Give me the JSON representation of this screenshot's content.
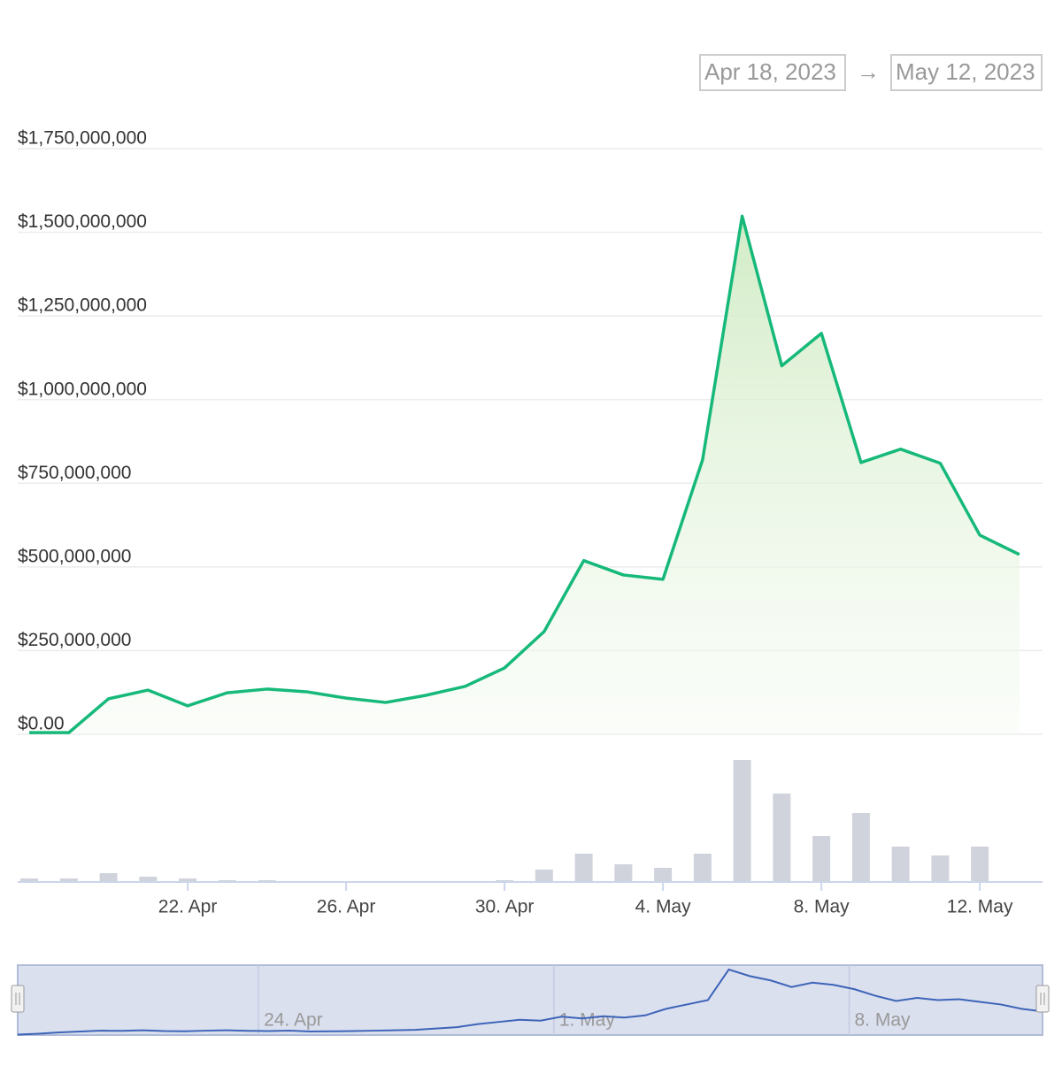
{
  "range_selector": {
    "from": "Apr 18, 2023",
    "separator": "→",
    "to": "May 12, 2023"
  },
  "chart_data": {
    "type": "line",
    "x": [
      "2023-04-18",
      "2023-04-19",
      "2023-04-20",
      "2023-04-21",
      "2023-04-22",
      "2023-04-23",
      "2023-04-24",
      "2023-04-25",
      "2023-04-26",
      "2023-04-27",
      "2023-04-28",
      "2023-04-29",
      "2023-04-30",
      "2023-05-01",
      "2023-05-02",
      "2023-05-03",
      "2023-05-04",
      "2023-05-05",
      "2023-05-06",
      "2023-05-07",
      "2023-05-08",
      "2023-05-09",
      "2023-05-10",
      "2023-05-11",
      "2023-05-12",
      "2023-05-13"
    ],
    "xlim": [
      "2023-04-17T17:00Z",
      "2023-05-13T14:00Z"
    ],
    "xticks": [
      {
        "value": "2023-04-22",
        "label": "22. Apr"
      },
      {
        "value": "2023-04-26",
        "label": "26. Apr"
      },
      {
        "value": "2023-04-30",
        "label": "30. Apr"
      },
      {
        "value": "2023-05-04",
        "label": "4. May"
      },
      {
        "value": "2023-05-08",
        "label": "8. May"
      },
      {
        "value": "2023-05-12",
        "label": "12. May"
      }
    ],
    "series": [
      {
        "type": "area",
        "color": "#16b97a",
        "values": [
          5000000,
          5000000,
          106000000,
          132000000,
          85000000,
          124000000,
          135000000,
          127000000,
          108000000,
          95000000,
          116000000,
          143000000,
          198000000,
          307000000,
          519000000,
          476000000,
          463000000,
          820000000,
          1548000000,
          1101000000,
          1198000000,
          812000000,
          852000000,
          810000000,
          595000000,
          537000000
        ]
      },
      {
        "type": "bar",
        "axis": "y2",
        "color": "#d0d3dc",
        "values": [
          4,
          4,
          10,
          6,
          4,
          2,
          2,
          0,
          0,
          0,
          0,
          0,
          2,
          14,
          32,
          20,
          16,
          32,
          138,
          100,
          52,
          78,
          40,
          30,
          40,
          null
        ]
      }
    ],
    "ylim": [
      0,
      1750000000
    ],
    "yticks": [
      {
        "value": 0,
        "label": "$0.00"
      },
      {
        "value": 250000000,
        "label": "$250,000,000"
      },
      {
        "value": 500000000,
        "label": "$500,000,000"
      },
      {
        "value": 750000000,
        "label": "$750,000,000"
      },
      {
        "value": 1000000000,
        "label": "$1,000,000,000"
      },
      {
        "value": 1250000000,
        "label": "$1,250,000,000"
      },
      {
        "value": 1500000000,
        "label": "$1,500,000,000"
      },
      {
        "value": 1750000000,
        "label": "$1,750,000,000"
      }
    ],
    "y2lim": [
      0,
      150
    ],
    "grid": true,
    "navigator": {
      "color": "#3d64b8",
      "xlim": [
        "2023-04-18T07:00Z",
        "2023-05-12T14:00Z"
      ],
      "xticks": [
        {
          "value": "2023-04-24",
          "label": "24. Apr"
        },
        {
          "value": "2023-05-01",
          "label": "1. May"
        },
        {
          "value": "2023-05-08",
          "label": "8. May"
        }
      ],
      "ylim": [
        0,
        1600000000
      ],
      "values": [
        10000000,
        30000000,
        60000000,
        80000000,
        100000000,
        95000000,
        110000000,
        90000000,
        85000000,
        100000000,
        110000000,
        95000000,
        90000000,
        100000000,
        80000000,
        85000000,
        90000000,
        100000000,
        110000000,
        120000000,
        150000000,
        180000000,
        250000000,
        300000000,
        350000000,
        330000000,
        420000000,
        380000000,
        430000000,
        400000000,
        450000000,
        600000000,
        700000000,
        800000000,
        1500000000,
        1350000000,
        1250000000,
        1100000000,
        1200000000,
        1150000000,
        1050000000,
        900000000,
        780000000,
        850000000,
        800000000,
        820000000,
        760000000,
        700000000,
        600000000,
        540000000
      ]
    }
  }
}
